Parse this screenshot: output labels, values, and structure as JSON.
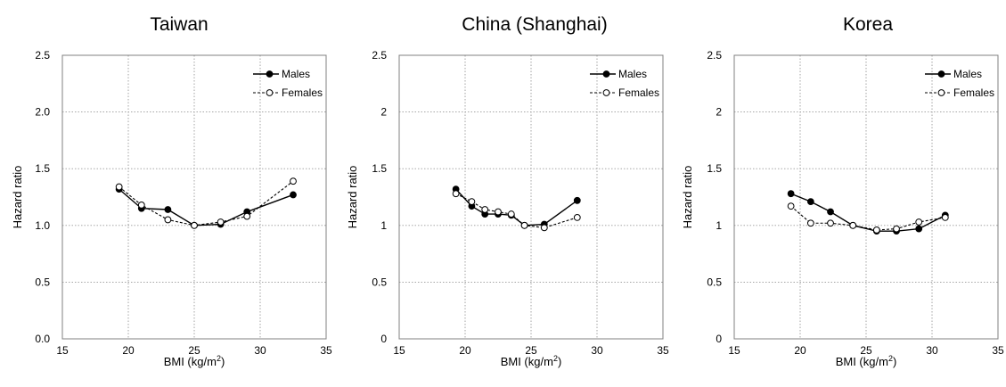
{
  "chart_data": [
    {
      "type": "line",
      "title": "Taiwan",
      "xlabel": "BMI (kg/m",
      "xlabel_sup": "2",
      "xlabel_end": ")",
      "ylabel": "Hazard ratio",
      "xlim": [
        15,
        35
      ],
      "ylim": [
        0,
        2.5
      ],
      "xticks": [
        "15",
        "20",
        "25",
        "30",
        "35"
      ],
      "yticks": [
        "0.0",
        "0.5",
        "1.0",
        "1.5",
        "2.0",
        "2.5"
      ],
      "grid": true,
      "legend_position": "top-right",
      "series": [
        {
          "name": "Males",
          "marker": "filled-circle",
          "line": "solid",
          "x": [
            19.3,
            21.0,
            23.0,
            25.0,
            27.0,
            29.0,
            32.5
          ],
          "y": [
            1.32,
            1.15,
            1.14,
            1.0,
            1.01,
            1.12,
            1.27
          ]
        },
        {
          "name": "Females",
          "marker": "open-circle",
          "line": "dashed",
          "x": [
            19.3,
            21.0,
            23.0,
            25.0,
            27.0,
            29.0,
            32.5
          ],
          "y": [
            1.34,
            1.18,
            1.05,
            1.0,
            1.03,
            1.08,
            1.39
          ]
        }
      ]
    },
    {
      "type": "line",
      "title": "China (Shanghai)",
      "xlabel": "BMI (kg/m",
      "xlabel_sup": "2",
      "xlabel_end": ")",
      "ylabel": "Hazard ratio",
      "xlim": [
        15,
        35
      ],
      "ylim": [
        0,
        2.5
      ],
      "xticks": [
        "15",
        "20",
        "25",
        "30",
        "35"
      ],
      "yticks": [
        "0",
        "0.5",
        "1",
        "1.5",
        "2",
        "2.5"
      ],
      "grid": true,
      "legend_position": "top-right",
      "series": [
        {
          "name": "Males",
          "marker": "filled-circle",
          "line": "solid",
          "x": [
            19.3,
            20.5,
            21.5,
            22.5,
            23.5,
            24.5,
            26.0,
            28.5
          ],
          "y": [
            1.32,
            1.17,
            1.1,
            1.1,
            1.09,
            1.0,
            1.01,
            1.22
          ]
        },
        {
          "name": "Females",
          "marker": "open-circle",
          "line": "dashed",
          "x": [
            19.3,
            20.5,
            21.5,
            22.5,
            23.5,
            24.5,
            26.0,
            28.5
          ],
          "y": [
            1.28,
            1.21,
            1.14,
            1.12,
            1.1,
            1.0,
            0.98,
            1.07
          ]
        }
      ]
    },
    {
      "type": "line",
      "title": "Korea",
      "xlabel": "BMI (kg/m",
      "xlabel_sup": "2",
      "xlabel_end": ")",
      "ylabel": "Hazard ratio",
      "xlim": [
        15,
        35
      ],
      "ylim": [
        0,
        2.5
      ],
      "xticks": [
        "15",
        "20",
        "25",
        "30",
        "35"
      ],
      "yticks": [
        "0",
        "0.5",
        "1",
        "1.5",
        "2",
        "2.5"
      ],
      "grid": true,
      "legend_position": "top-right",
      "series": [
        {
          "name": "Males",
          "marker": "filled-circle",
          "line": "solid",
          "x": [
            19.3,
            20.8,
            22.3,
            24.0,
            25.8,
            27.3,
            29.0,
            31.0
          ],
          "y": [
            1.28,
            1.21,
            1.12,
            1.0,
            0.95,
            0.95,
            0.97,
            1.09
          ]
        },
        {
          "name": "Females",
          "marker": "open-circle",
          "line": "dashed",
          "x": [
            19.3,
            20.8,
            22.3,
            24.0,
            25.8,
            27.3,
            29.0,
            31.0
          ],
          "y": [
            1.17,
            1.02,
            1.02,
            1.0,
            0.96,
            0.97,
            1.03,
            1.07
          ]
        }
      ]
    }
  ]
}
